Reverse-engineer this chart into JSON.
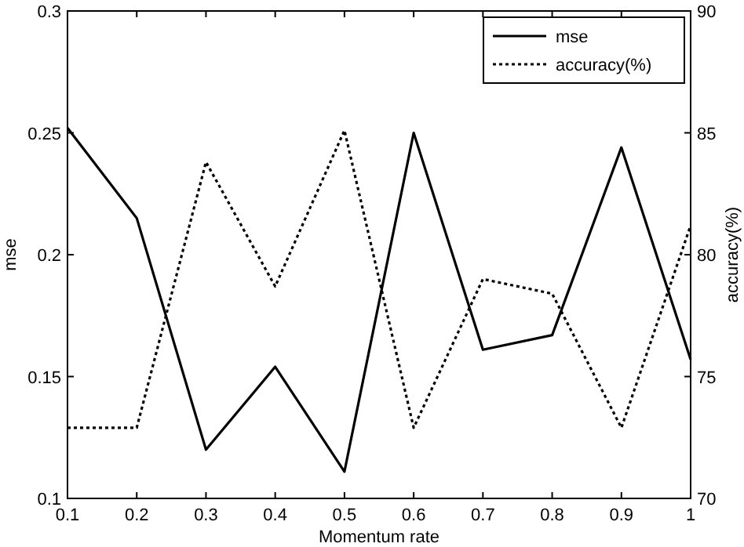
{
  "chart_data": {
    "type": "line",
    "xlabel": "Momentum rate",
    "ylabel": "mse",
    "y2label": "accuracy(%)",
    "x": [
      0.1,
      0.2,
      0.3,
      0.4,
      0.5,
      0.6,
      0.7,
      0.8,
      0.9,
      1
    ],
    "series": [
      {
        "name": "mse",
        "color": "#000000",
        "line_style": "solid",
        "values": [
          0.252,
          0.215,
          0.12,
          0.154,
          0.111,
          0.25,
          0.161,
          0.167,
          0.244,
          0.157
        ]
      },
      {
        "name": "accuracy(%)",
        "color": "#000000",
        "line_style": "dotted",
        "axis": "y2",
        "values": [
          72.9,
          72.9,
          83.8,
          78.7,
          85.1,
          72.9,
          79.0,
          78.4,
          72.9,
          81.2
        ]
      }
    ],
    "xlim": [
      0.1,
      1
    ],
    "xticks": [
      0.1,
      0.2,
      0.3,
      0.4,
      0.5,
      0.6,
      0.7,
      0.8,
      0.9,
      1
    ],
    "ylim": [
      0.1,
      0.3
    ],
    "yticks": [
      0.1,
      0.15,
      0.2,
      0.25,
      0.3
    ],
    "y2lim": [
      70,
      90
    ],
    "y2ticks": [
      70,
      75,
      80,
      85,
      90
    ],
    "legend": "top right"
  }
}
